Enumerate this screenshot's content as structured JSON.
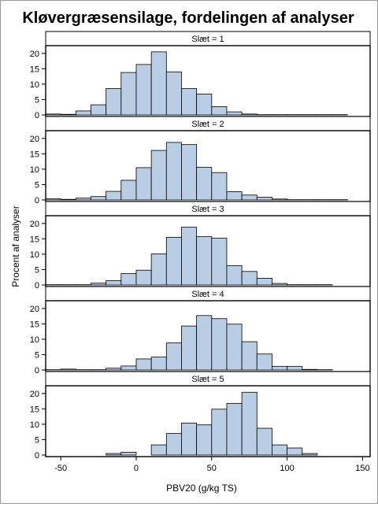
{
  "chart_data": {
    "type": "bar",
    "title": "Kløvergræsensilage, fordelingen af analyser",
    "xlabel": "PBV20 (g/kg TS)",
    "ylabel": "Procent af analyser",
    "xlim": [
      -60,
      155
    ],
    "ylim": [
      0,
      22
    ],
    "bin_width": 10,
    "bin_starts": [
      -60,
      -50,
      -40,
      -30,
      -20,
      -10,
      0,
      10,
      20,
      30,
      40,
      50,
      60,
      70,
      80,
      90,
      100,
      110,
      120,
      130,
      140
    ],
    "xticks": [
      -50,
      0,
      50,
      100,
      150
    ],
    "yticks": [
      0,
      5,
      10,
      15,
      20
    ],
    "grid": false,
    "bar_color": "#b9cde5",
    "bar_edge": "#000000",
    "panels": [
      {
        "label": "Slæt = 1",
        "values": [
          0.3,
          0.2,
          1.3,
          3.3,
          8.6,
          13.8,
          16.4,
          20.5,
          14.0,
          8.6,
          6.8,
          2.7,
          1.0,
          0.3,
          0.1,
          0.1,
          0.1,
          0.1,
          0.1,
          0.1,
          0.0
        ]
      },
      {
        "label": "Slæt = 2",
        "values": [
          0.4,
          0.2,
          0.6,
          1.1,
          2.8,
          6.4,
          10.5,
          16.1,
          18.7,
          18.0,
          10.6,
          8.9,
          2.7,
          1.6,
          0.9,
          0.3,
          0.1,
          0.1,
          0.1,
          0.1,
          0.0
        ]
      },
      {
        "label": "Slæt = 3",
        "values": [
          0.1,
          0.1,
          0.1,
          0.6,
          1.4,
          3.7,
          4.8,
          10.1,
          15.5,
          18.8,
          15.7,
          15.2,
          6.3,
          4.4,
          2.2,
          0.5,
          0.1,
          0.1,
          0.1,
          0.0,
          0.0
        ]
      },
      {
        "label": "Slæt = 4",
        "values": [
          0.1,
          0.3,
          0.1,
          0.1,
          0.6,
          1.3,
          3.6,
          4.2,
          8.8,
          14.3,
          17.7,
          16.7,
          14.9,
          9.2,
          5.2,
          1.2,
          1.2,
          0.2,
          0.1,
          0.0,
          0.0
        ]
      },
      {
        "label": "Slæt = 5",
        "values": [
          0.0,
          0.0,
          0.0,
          0.0,
          0.5,
          0.9,
          0.0,
          3.3,
          7.0,
          10.4,
          9.8,
          14.9,
          16.8,
          20.4,
          8.7,
          3.3,
          2.3,
          0.5,
          0.0,
          0.0,
          0.0
        ]
      }
    ]
  }
}
